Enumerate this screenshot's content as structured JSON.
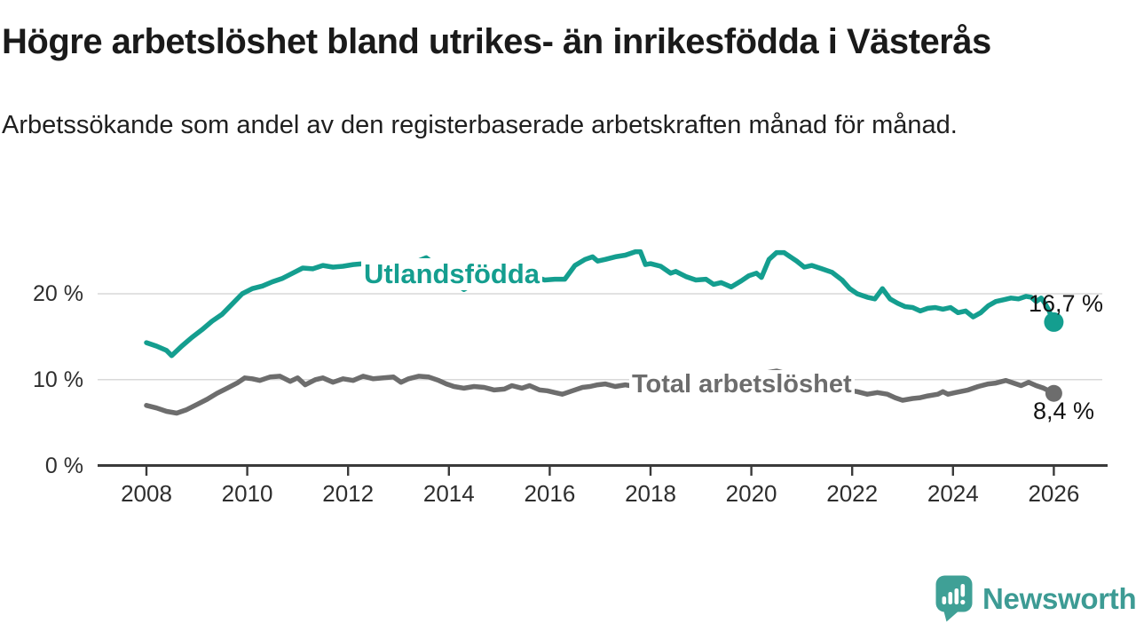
{
  "header": {
    "title": "Högre arbetslöshet bland utrikes- än inrikesfödda i Västerås",
    "subtitle": "Arbetssökande som andel av den registerbaserade arbetskraften månad för månad."
  },
  "chart_data": {
    "type": "line",
    "title": "Högre arbetslöshet bland utrikes- än inrikesfödda i Västerås",
    "subtitle": "Arbetssökande som andel av den registerbaserade arbetskraften månad för månad.",
    "grid": "horizontal",
    "legend": "inline-labels",
    "x_axis": {
      "range": [
        2007.0,
        2027.1
      ],
      "ticks": [
        2008,
        2010,
        2012,
        2014,
        2016,
        2018,
        2020,
        2022,
        2024,
        2026
      ],
      "tick_labels": [
        "2008",
        "2010",
        "2012",
        "2014",
        "2016",
        "2018",
        "2020",
        "2022",
        "2024",
        "2026"
      ]
    },
    "y_axis": {
      "unit": "%",
      "range": [
        0,
        27.5
      ],
      "ticks": [
        0,
        10,
        20
      ],
      "tick_labels": [
        "0 %",
        "10 %",
        "20 %"
      ]
    },
    "series": [
      {
        "name": "Utlandsfödda",
        "color": "#149e8f",
        "end_label": "16,7 %",
        "end_value": 16.7,
        "points": [
          [
            2008.0,
            14.3
          ],
          [
            2008.2,
            13.9
          ],
          [
            2008.4,
            13.4
          ],
          [
            2008.5,
            12.8
          ],
          [
            2008.7,
            13.9
          ],
          [
            2008.9,
            14.9
          ],
          [
            2009.1,
            15.8
          ],
          [
            2009.3,
            16.8
          ],
          [
            2009.5,
            17.6
          ],
          [
            2009.7,
            18.8
          ],
          [
            2009.9,
            20.0
          ],
          [
            2010.1,
            20.6
          ],
          [
            2010.3,
            20.9
          ],
          [
            2010.5,
            21.4
          ],
          [
            2010.7,
            21.8
          ],
          [
            2010.9,
            22.4
          ],
          [
            2011.1,
            23.0
          ],
          [
            2011.3,
            22.9
          ],
          [
            2011.5,
            23.3
          ],
          [
            2011.7,
            23.1
          ],
          [
            2011.9,
            23.2
          ],
          [
            2012.1,
            23.4
          ],
          [
            2012.3,
            23.5
          ],
          [
            2012.5,
            23.0
          ],
          [
            2012.7,
            23.2
          ],
          [
            2012.9,
            23.3
          ],
          [
            2013.1,
            23.4
          ],
          [
            2013.3,
            23.6
          ],
          [
            2013.55,
            24.2
          ],
          [
            2013.7,
            23.5
          ],
          [
            2013.9,
            22.5
          ],
          [
            2014.1,
            21.3
          ],
          [
            2014.3,
            20.5
          ],
          [
            2014.5,
            21.2
          ],
          [
            2014.7,
            21.6
          ],
          [
            2014.9,
            21.8
          ],
          [
            2015.1,
            21.7
          ],
          [
            2015.3,
            21.9
          ],
          [
            2015.5,
            21.8
          ],
          [
            2015.7,
            22.0
          ],
          [
            2015.9,
            21.6
          ],
          [
            2016.1,
            21.7
          ],
          [
            2016.3,
            21.7
          ],
          [
            2016.5,
            23.3
          ],
          [
            2016.7,
            24.0
          ],
          [
            2016.85,
            24.3
          ],
          [
            2016.95,
            23.8
          ],
          [
            2017.1,
            24.0
          ],
          [
            2017.3,
            24.3
          ],
          [
            2017.5,
            24.5
          ],
          [
            2017.7,
            24.9
          ],
          [
            2017.8,
            24.9
          ],
          [
            2017.9,
            23.4
          ],
          [
            2018.0,
            23.5
          ],
          [
            2018.2,
            23.2
          ],
          [
            2018.4,
            22.4
          ],
          [
            2018.5,
            22.6
          ],
          [
            2018.7,
            22.0
          ],
          [
            2018.9,
            21.6
          ],
          [
            2019.1,
            21.7
          ],
          [
            2019.25,
            21.1
          ],
          [
            2019.4,
            21.3
          ],
          [
            2019.6,
            20.8
          ],
          [
            2019.8,
            21.5
          ],
          [
            2019.95,
            22.1
          ],
          [
            2020.1,
            22.4
          ],
          [
            2020.2,
            21.9
          ],
          [
            2020.35,
            24.0
          ],
          [
            2020.5,
            24.8
          ],
          [
            2020.65,
            24.8
          ],
          [
            2020.8,
            24.2
          ],
          [
            2020.9,
            23.8
          ],
          [
            2021.05,
            23.1
          ],
          [
            2021.2,
            23.3
          ],
          [
            2021.4,
            22.9
          ],
          [
            2021.6,
            22.5
          ],
          [
            2021.8,
            21.6
          ],
          [
            2021.95,
            20.6
          ],
          [
            2022.1,
            20.0
          ],
          [
            2022.3,
            19.6
          ],
          [
            2022.45,
            19.4
          ],
          [
            2022.6,
            20.6
          ],
          [
            2022.75,
            19.4
          ],
          [
            2022.9,
            18.9
          ],
          [
            2023.05,
            18.5
          ],
          [
            2023.2,
            18.4
          ],
          [
            2023.35,
            18.0
          ],
          [
            2023.5,
            18.3
          ],
          [
            2023.65,
            18.4
          ],
          [
            2023.8,
            18.2
          ],
          [
            2023.95,
            18.4
          ],
          [
            2024.1,
            17.8
          ],
          [
            2024.25,
            18.0
          ],
          [
            2024.4,
            17.3
          ],
          [
            2024.55,
            17.8
          ],
          [
            2024.7,
            18.6
          ],
          [
            2024.85,
            19.1
          ],
          [
            2025.0,
            19.3
          ],
          [
            2025.15,
            19.5
          ],
          [
            2025.3,
            19.4
          ],
          [
            2025.45,
            19.7
          ],
          [
            2025.55,
            19.6
          ],
          [
            2025.65,
            19.1
          ],
          [
            2025.75,
            19.5
          ],
          [
            2025.82,
            18.9
          ],
          [
            2025.9,
            18.1
          ],
          [
            2026.0,
            16.7
          ]
        ]
      },
      {
        "name": "Total arbetslöshet",
        "color": "#6d6d6d",
        "end_label": "8,4 %",
        "end_value": 8.4,
        "points": [
          [
            2008.0,
            7.0
          ],
          [
            2008.2,
            6.7
          ],
          [
            2008.4,
            6.3
          ],
          [
            2008.6,
            6.1
          ],
          [
            2008.8,
            6.5
          ],
          [
            2009.0,
            7.1
          ],
          [
            2009.2,
            7.7
          ],
          [
            2009.4,
            8.4
          ],
          [
            2009.6,
            9.0
          ],
          [
            2009.8,
            9.6
          ],
          [
            2009.95,
            10.2
          ],
          [
            2010.1,
            10.1
          ],
          [
            2010.25,
            9.9
          ],
          [
            2010.45,
            10.3
          ],
          [
            2010.65,
            10.4
          ],
          [
            2010.85,
            9.8
          ],
          [
            2011.0,
            10.2
          ],
          [
            2011.15,
            9.4
          ],
          [
            2011.35,
            10.0
          ],
          [
            2011.5,
            10.2
          ],
          [
            2011.7,
            9.7
          ],
          [
            2011.9,
            10.1
          ],
          [
            2012.1,
            9.9
          ],
          [
            2012.3,
            10.4
          ],
          [
            2012.5,
            10.1
          ],
          [
            2012.7,
            10.2
          ],
          [
            2012.9,
            10.3
          ],
          [
            2013.05,
            9.7
          ],
          [
            2013.2,
            10.1
          ],
          [
            2013.4,
            10.4
          ],
          [
            2013.6,
            10.3
          ],
          [
            2013.8,
            9.9
          ],
          [
            2013.95,
            9.5
          ],
          [
            2014.1,
            9.2
          ],
          [
            2014.3,
            9.0
          ],
          [
            2014.5,
            9.2
          ],
          [
            2014.7,
            9.1
          ],
          [
            2014.9,
            8.8
          ],
          [
            2015.1,
            8.9
          ],
          [
            2015.25,
            9.3
          ],
          [
            2015.45,
            9.0
          ],
          [
            2015.6,
            9.3
          ],
          [
            2015.8,
            8.8
          ],
          [
            2015.95,
            8.7
          ],
          [
            2016.1,
            8.5
          ],
          [
            2016.25,
            8.3
          ],
          [
            2016.45,
            8.7
          ],
          [
            2016.65,
            9.1
          ],
          [
            2016.8,
            9.2
          ],
          [
            2016.95,
            9.4
          ],
          [
            2017.1,
            9.5
          ],
          [
            2017.3,
            9.2
          ],
          [
            2017.5,
            9.4
          ],
          [
            2017.7,
            9.2
          ],
          [
            2017.9,
            9.1
          ],
          [
            2018.1,
            9.0
          ],
          [
            2018.3,
            8.8
          ],
          [
            2018.5,
            8.7
          ],
          [
            2018.7,
            8.5
          ],
          [
            2018.9,
            8.5
          ],
          [
            2019.1,
            8.5
          ],
          [
            2019.3,
            8.6
          ],
          [
            2019.5,
            8.9
          ],
          [
            2019.7,
            9.2
          ],
          [
            2019.9,
            9.6
          ],
          [
            2020.1,
            10.0
          ],
          [
            2020.3,
            10.8
          ],
          [
            2020.5,
            11.0
          ],
          [
            2020.7,
            10.7
          ],
          [
            2020.9,
            10.3
          ],
          [
            2021.1,
            10.0
          ],
          [
            2021.3,
            9.7
          ],
          [
            2021.5,
            9.3
          ],
          [
            2021.7,
            9.0
          ],
          [
            2021.9,
            8.8
          ],
          [
            2022.1,
            8.6
          ],
          [
            2022.3,
            8.3
          ],
          [
            2022.5,
            8.5
          ],
          [
            2022.7,
            8.3
          ],
          [
            2022.85,
            7.9
          ],
          [
            2023.0,
            7.6
          ],
          [
            2023.2,
            7.8
          ],
          [
            2023.35,
            7.9
          ],
          [
            2023.5,
            8.1
          ],
          [
            2023.7,
            8.3
          ],
          [
            2023.8,
            8.6
          ],
          [
            2023.9,
            8.3
          ],
          [
            2024.05,
            8.5
          ],
          [
            2024.3,
            8.8
          ],
          [
            2024.5,
            9.2
          ],
          [
            2024.7,
            9.5
          ],
          [
            2024.85,
            9.6
          ],
          [
            2025.05,
            9.9
          ],
          [
            2025.2,
            9.6
          ],
          [
            2025.35,
            9.3
          ],
          [
            2025.5,
            9.7
          ],
          [
            2025.65,
            9.3
          ],
          [
            2025.8,
            9.0
          ],
          [
            2025.9,
            8.7
          ],
          [
            2026.0,
            8.4
          ]
        ]
      }
    ]
  },
  "footer": {
    "brand": "Newsworthy"
  },
  "colors": {
    "series_foreign_born": "#149e8f",
    "series_total": "#6d6d6d",
    "grid": "#d9d9d9",
    "axis": "#3a3a3a",
    "text": "#1a1a1a",
    "tick_text": "#2e2e2e",
    "brand_teal": "#3d9b94",
    "background": "#ffffff"
  }
}
